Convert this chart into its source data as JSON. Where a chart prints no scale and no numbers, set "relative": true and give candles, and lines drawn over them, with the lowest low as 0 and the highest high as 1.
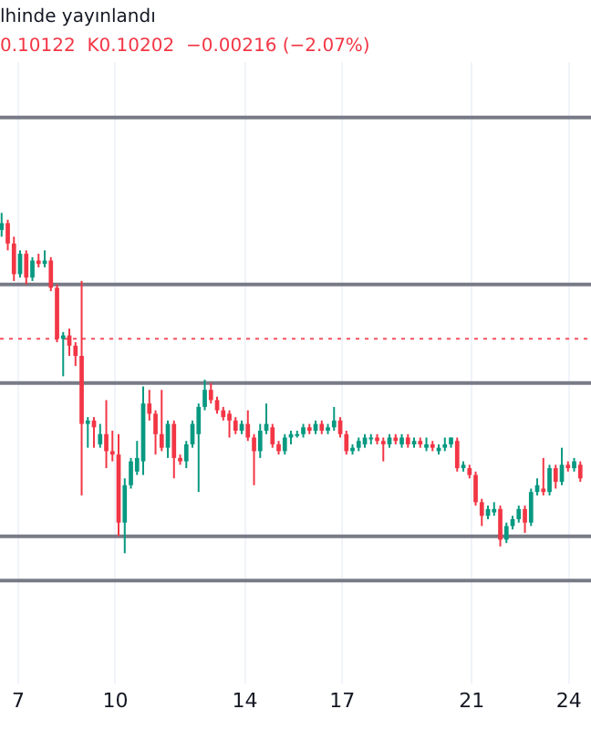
{
  "chart_data": {
    "type": "candlestick",
    "title": "lhinde yayınlandı",
    "subtitle": "0.10122  K0.10202  −0.00216 (−2.07%)",
    "relative": true,
    "colors": [
      "#089981",
      "#f23645",
      "#f23645",
      "#089981",
      "#f23645",
      "#089981",
      "#f23645",
      "#089981",
      "#f23645",
      "#f23645",
      "#089981",
      "#f23645",
      "#f23645",
      "#f23645",
      "#089981",
      "#f23645",
      "#089981",
      "#f23645",
      "#f23645",
      "#f23645",
      "#089981",
      "#089981",
      "#089981",
      "#089981",
      "#f23645",
      "#f23645",
      "#f23645",
      "#089981",
      "#f23645",
      "#f23645",
      "#089981",
      "#089981",
      "#089981",
      "#089981",
      "#f23645",
      "#f23645",
      "#f23645",
      "#f23645",
      "#f23645",
      "#089981",
      "#f23645",
      "#f23645",
      "#089981",
      "#089981",
      "#f23645",
      "#f23645",
      "#089981",
      "#089981",
      "#089981",
      "#089981",
      "#f23645",
      "#089981",
      "#f23645",
      "#089981",
      "#089981",
      "#f23645",
      "#f23645",
      "#089981",
      "#089981",
      "#089981",
      "#089981",
      "#f23645",
      "#f23645",
      "#089981",
      "#f23645",
      "#089981",
      "#f23645",
      "#089981",
      "#f23645",
      "#089981",
      "#f23645",
      "#089981",
      "#089981",
      "#089981",
      "#f23645",
      "#089981",
      "#f23645",
      "#f23645",
      "#f23645",
      "#089981",
      "#089981",
      "#f23645",
      "#089981",
      "#089981",
      "#089981",
      "#f23645",
      "#089981",
      "#089981",
      "#f23645",
      "#089981",
      "#f23645",
      "#089981",
      "#f23645",
      "#089981",
      "#f23645"
    ],
    "x": [
      6.49,
      6.68,
      6.87,
      7.06,
      7.25,
      7.44,
      7.63,
      7.82,
      8.01,
      8.2,
      8.39,
      8.58,
      8.77,
      8.96,
      9.15,
      9.34,
      9.53,
      9.72,
      9.91,
      10.1,
      10.29,
      10.48,
      10.67,
      10.86,
      11.05,
      11.24,
      11.43,
      11.62,
      11.81,
      12.0,
      12.19,
      12.38,
      12.57,
      12.76,
      12.95,
      13.14,
      13.33,
      13.52,
      13.71,
      13.9,
      14.09,
      14.28,
      14.47,
      14.66,
      14.85,
      15.04,
      15.23,
      15.42,
      15.61,
      15.8,
      15.99,
      16.18,
      16.37,
      16.56,
      16.75,
      16.94,
      17.13,
      17.32,
      17.51,
      17.7,
      17.89,
      18.08,
      18.27,
      18.46,
      18.65,
      18.84,
      19.03,
      19.22,
      19.41,
      19.6,
      19.79,
      19.98,
      20.17,
      20.36,
      20.55,
      20.74,
      20.93,
      21.12,
      21.31,
      21.5,
      21.69,
      21.88,
      22.07,
      22.26,
      22.45,
      22.64,
      22.83,
      23.02,
      23.21,
      23.4,
      23.59,
      23.78,
      23.97,
      24.16,
      24.35
    ],
    "ohlc": [
      [
        0.95,
        1.0,
        0.93,
        0.97
      ],
      [
        0.97,
        0.98,
        0.89,
        0.91
      ],
      [
        0.91,
        0.93,
        0.8,
        0.82
      ],
      [
        0.82,
        0.89,
        0.81,
        0.88
      ],
      [
        0.88,
        0.89,
        0.79,
        0.81
      ],
      [
        0.81,
        0.87,
        0.8,
        0.86
      ],
      [
        0.86,
        0.88,
        0.84,
        0.85
      ],
      [
        0.85,
        0.89,
        0.84,
        0.86
      ],
      [
        0.86,
        0.87,
        0.77,
        0.78
      ],
      [
        0.78,
        0.79,
        0.62,
        0.63
      ],
      [
        0.63,
        0.65,
        0.52,
        0.64
      ],
      [
        0.64,
        0.66,
        0.58,
        0.61
      ],
      [
        0.61,
        0.62,
        0.55,
        0.58
      ],
      [
        0.58,
        0.8,
        0.17,
        0.38
      ],
      [
        0.38,
        0.4,
        0.31,
        0.39
      ],
      [
        0.39,
        0.4,
        0.31,
        0.37
      ],
      [
        0.32,
        0.38,
        0.31,
        0.35
      ],
      [
        0.35,
        0.45,
        0.25,
        0.3
      ],
      [
        0.3,
        0.36,
        0.27,
        0.29
      ],
      [
        0.29,
        0.35,
        0.05,
        0.09
      ],
      [
        0.09,
        0.22,
        0.0,
        0.2
      ],
      [
        0.2,
        0.28,
        0.19,
        0.27
      ],
      [
        0.24,
        0.33,
        0.23,
        0.28
      ],
      [
        0.27,
        0.49,
        0.23,
        0.44
      ],
      [
        0.44,
        0.48,
        0.39,
        0.41
      ],
      [
        0.41,
        0.42,
        0.29,
        0.35
      ],
      [
        0.35,
        0.48,
        0.3,
        0.31
      ],
      [
        0.31,
        0.39,
        0.28,
        0.38
      ],
      [
        0.38,
        0.39,
        0.22,
        0.28
      ],
      [
        0.28,
        0.29,
        0.26,
        0.27
      ],
      [
        0.27,
        0.33,
        0.25,
        0.32
      ],
      [
        0.32,
        0.39,
        0.31,
        0.38
      ],
      [
        0.35,
        0.44,
        0.18,
        0.43
      ],
      [
        0.43,
        0.51,
        0.42,
        0.48
      ],
      [
        0.48,
        0.5,
        0.44,
        0.45
      ],
      [
        0.45,
        0.46,
        0.41,
        0.42
      ],
      [
        0.42,
        0.43,
        0.39,
        0.4
      ],
      [
        0.41,
        0.42,
        0.34,
        0.39
      ],
      [
        0.39,
        0.4,
        0.35,
        0.36
      ],
      [
        0.36,
        0.39,
        0.35,
        0.38
      ],
      [
        0.38,
        0.42,
        0.33,
        0.34
      ],
      [
        0.34,
        0.35,
        0.2,
        0.3
      ],
      [
        0.3,
        0.38,
        0.28,
        0.36
      ],
      [
        0.36,
        0.44,
        0.35,
        0.38
      ],
      [
        0.37,
        0.38,
        0.31,
        0.32
      ],
      [
        0.32,
        0.33,
        0.29,
        0.3
      ],
      [
        0.3,
        0.35,
        0.29,
        0.34
      ],
      [
        0.34,
        0.36,
        0.32,
        0.35
      ],
      [
        0.35,
        0.36,
        0.34,
        0.35
      ],
      [
        0.35,
        0.38,
        0.34,
        0.37
      ],
      [
        0.37,
        0.38,
        0.35,
        0.36
      ],
      [
        0.36,
        0.39,
        0.35,
        0.38
      ],
      [
        0.38,
        0.39,
        0.35,
        0.36
      ],
      [
        0.36,
        0.38,
        0.35,
        0.37
      ],
      [
        0.37,
        0.43,
        0.36,
        0.39
      ],
      [
        0.39,
        0.4,
        0.34,
        0.35
      ],
      [
        0.35,
        0.36,
        0.29,
        0.3
      ],
      [
        0.3,
        0.32,
        0.29,
        0.31
      ],
      [
        0.31,
        0.34,
        0.3,
        0.33
      ],
      [
        0.32,
        0.35,
        0.31,
        0.34
      ],
      [
        0.34,
        0.35,
        0.32,
        0.34
      ],
      [
        0.34,
        0.35,
        0.32,
        0.33
      ],
      [
        0.33,
        0.34,
        0.27,
        0.32
      ],
      [
        0.32,
        0.35,
        0.31,
        0.34
      ],
      [
        0.34,
        0.35,
        0.32,
        0.33
      ],
      [
        0.32,
        0.35,
        0.31,
        0.34
      ],
      [
        0.34,
        0.35,
        0.31,
        0.32
      ],
      [
        0.32,
        0.34,
        0.31,
        0.33
      ],
      [
        0.33,
        0.34,
        0.31,
        0.32
      ],
      [
        0.31,
        0.34,
        0.3,
        0.32
      ],
      [
        0.32,
        0.33,
        0.3,
        0.31
      ],
      [
        0.3,
        0.32,
        0.29,
        0.31
      ],
      [
        0.31,
        0.34,
        0.3,
        0.32
      ],
      [
        0.32,
        0.34,
        0.31,
        0.34
      ],
      [
        0.33,
        0.34,
        0.24,
        0.25
      ],
      [
        0.25,
        0.27,
        0.24,
        0.26
      ],
      [
        0.25,
        0.26,
        0.22,
        0.23
      ],
      [
        0.23,
        0.24,
        0.14,
        0.15
      ],
      [
        0.15,
        0.16,
        0.08,
        0.11
      ],
      [
        0.11,
        0.14,
        0.1,
        0.13
      ],
      [
        0.12,
        0.15,
        0.11,
        0.13
      ],
      [
        0.13,
        0.14,
        0.02,
        0.04
      ],
      [
        0.04,
        0.09,
        0.03,
        0.08
      ],
      [
        0.08,
        0.11,
        0.07,
        0.1
      ],
      [
        0.1,
        0.14,
        0.09,
        0.13
      ],
      [
        0.13,
        0.14,
        0.06,
        0.09
      ],
      [
        0.09,
        0.19,
        0.08,
        0.18
      ],
      [
        0.18,
        0.22,
        0.17,
        0.2
      ],
      [
        0.19,
        0.28,
        0.17,
        0.18
      ],
      [
        0.18,
        0.26,
        0.17,
        0.25
      ],
      [
        0.25,
        0.26,
        0.19,
        0.21
      ],
      [
        0.21,
        0.31,
        0.2,
        0.26
      ],
      [
        0.26,
        0.27,
        0.24,
        0.25
      ],
      [
        0.25,
        0.28,
        0.24,
        0.27
      ],
      [
        0.26,
        0.27,
        0.21,
        0.22
      ]
    ],
    "xlim": [
      6.44,
      24.68
    ],
    "xticks": [
      7,
      10,
      14,
      17,
      21,
      24
    ],
    "grid": "x",
    "ref_lines": [
      {
        "axis": "y",
        "value": 1.28,
        "color": "#787b86",
        "line_style": "solid"
      },
      {
        "axis": "y",
        "value": 0.79,
        "color": "#787b86",
        "line_style": "solid"
      },
      {
        "axis": "y",
        "value": 0.63,
        "color": "#f7525f",
        "line_style": "dotted"
      },
      {
        "axis": "y",
        "value": 0.5,
        "color": "#787b86",
        "line_style": "solid"
      },
      {
        "axis": "y",
        "value": 0.05,
        "color": "#787b86",
        "line_style": "solid"
      },
      {
        "axis": "y",
        "value": -0.08,
        "color": "#787b86",
        "line_style": "solid"
      }
    ]
  }
}
